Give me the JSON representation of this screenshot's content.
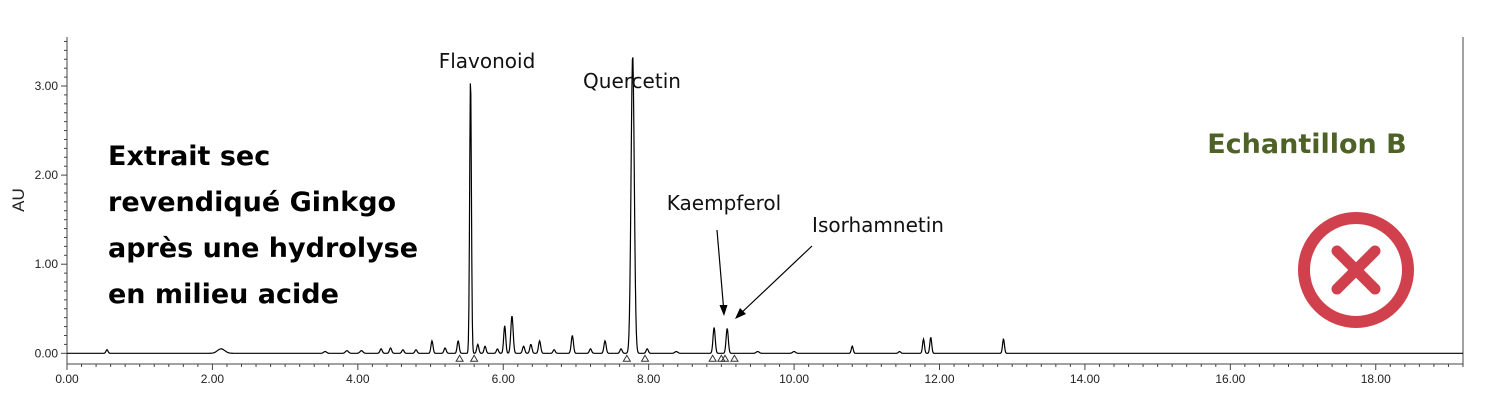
{
  "chart_data": {
    "type": "line",
    "title": "",
    "xlabel": "",
    "ylabel": "AU",
    "xlim": [
      0,
      19.2
    ],
    "ylim": [
      -0.12,
      3.55
    ],
    "xticks": [
      0,
      2,
      4,
      6,
      8,
      10,
      12,
      14,
      16,
      18
    ],
    "xtick_labels": [
      "0.00",
      "2.00",
      "4.00",
      "6.00",
      "8.00",
      "10.00",
      "12.00",
      "14.00",
      "16.00",
      "18.00"
    ],
    "yticks": [
      0,
      1,
      2,
      3
    ],
    "ytick_labels": [
      "0.00",
      "1.00",
      "2.00",
      "3.00"
    ],
    "grid": false,
    "series": [
      {
        "peaks": [
          {
            "x": 0.55,
            "y": 0.04,
            "w": 0.014
          },
          {
            "x": 2.12,
            "y": 0.05,
            "w": 0.05
          },
          {
            "x": 3.55,
            "y": 0.02,
            "w": 0.02
          },
          {
            "x": 3.85,
            "y": 0.03,
            "w": 0.02
          },
          {
            "x": 4.05,
            "y": 0.03,
            "w": 0.02
          },
          {
            "x": 4.32,
            "y": 0.05,
            "w": 0.015
          },
          {
            "x": 4.45,
            "y": 0.06,
            "w": 0.015
          },
          {
            "x": 4.62,
            "y": 0.04,
            "w": 0.015
          },
          {
            "x": 4.8,
            "y": 0.04,
            "w": 0.015
          },
          {
            "x": 5.02,
            "y": 0.14,
            "w": 0.014
          },
          {
            "x": 5.2,
            "y": 0.06,
            "w": 0.015
          },
          {
            "x": 5.38,
            "y": 0.14,
            "w": 0.014
          },
          {
            "x": 5.55,
            "y": 3.1,
            "w": 0.012
          },
          {
            "x": 5.65,
            "y": 0.1,
            "w": 0.014
          },
          {
            "x": 5.75,
            "y": 0.08,
            "w": 0.014
          },
          {
            "x": 5.92,
            "y": 0.05,
            "w": 0.014
          },
          {
            "x": 6.02,
            "y": 0.31,
            "w": 0.014
          },
          {
            "x": 6.12,
            "y": 0.42,
            "w": 0.016
          },
          {
            "x": 6.28,
            "y": 0.08,
            "w": 0.015
          },
          {
            "x": 6.38,
            "y": 0.1,
            "w": 0.015
          },
          {
            "x": 6.5,
            "y": 0.14,
            "w": 0.015
          },
          {
            "x": 6.7,
            "y": 0.04,
            "w": 0.015
          },
          {
            "x": 6.95,
            "y": 0.2,
            "w": 0.015
          },
          {
            "x": 7.2,
            "y": 0.05,
            "w": 0.015
          },
          {
            "x": 7.4,
            "y": 0.14,
            "w": 0.015
          },
          {
            "x": 7.62,
            "y": 0.05,
            "w": 0.015
          },
          {
            "x": 7.78,
            "y": 3.35,
            "w": 0.022
          },
          {
            "x": 7.98,
            "y": 0.05,
            "w": 0.015
          },
          {
            "x": 8.38,
            "y": 0.02,
            "w": 0.02
          },
          {
            "x": 8.9,
            "y": 0.29,
            "w": 0.015
          },
          {
            "x": 9.08,
            "y": 0.28,
            "w": 0.015
          },
          {
            "x": 9.5,
            "y": 0.02,
            "w": 0.02
          },
          {
            "x": 10.0,
            "y": 0.02,
            "w": 0.02
          },
          {
            "x": 10.8,
            "y": 0.08,
            "w": 0.013
          },
          {
            "x": 11.45,
            "y": 0.02,
            "w": 0.015
          },
          {
            "x": 11.78,
            "y": 0.16,
            "w": 0.013
          },
          {
            "x": 11.88,
            "y": 0.18,
            "w": 0.013
          },
          {
            "x": 12.88,
            "y": 0.16,
            "w": 0.013
          }
        ]
      }
    ],
    "integration_markers": [
      5.4,
      5.6,
      7.7,
      7.95,
      8.88,
      9.0,
      9.05,
      9.18
    ],
    "annotations": [
      {
        "text": "Flavonoid",
        "x": 5.55
      },
      {
        "text": "Quercetin",
        "x": 7.78
      },
      {
        "text": "Kaempferol",
        "x": 8.9,
        "arrow_to": {
          "x": 8.95,
          "y": 0.33
        }
      },
      {
        "text": "Isorhamnetin",
        "x": 9.08,
        "arrow_to": {
          "x": 9.1,
          "y": 0.32
        }
      }
    ]
  },
  "description_lines": [
    "Extrait sec",
    "revendiqué Ginkgo",
    "après une hydrolyse",
    "en milieu acide"
  ],
  "sample_title": "Echantillon B",
  "status_icon": "close-circle-icon",
  "colors": {
    "trace": "#000000",
    "sample_title": "#4E6227",
    "status_icon": "#D0414D"
  }
}
